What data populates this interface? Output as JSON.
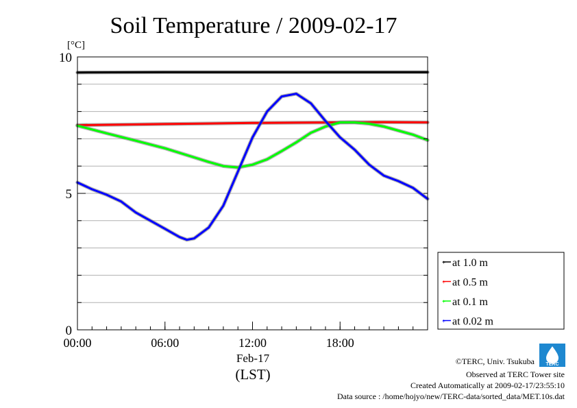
{
  "chart_data": {
    "type": "line",
    "title": "Soil Temperature / 2009-02-17",
    "yunit": "[°C]",
    "ylim": [
      0,
      10
    ],
    "yticks": [
      0,
      5,
      10
    ],
    "ygrid_step": 1,
    "xlim": [
      0,
      24
    ],
    "xticks": [
      {
        "h": 0,
        "label": "00:00"
      },
      {
        "h": 6,
        "label": "06:00"
      },
      {
        "h": 12,
        "label": "12:00"
      },
      {
        "h": 18,
        "label": "18:00"
      }
    ],
    "xsub": "Feb-17",
    "xlabel": "(LST)",
    "grid": true,
    "legend_position": "right, lower",
    "series": [
      {
        "name": "at 1.0 m",
        "color": "#000000",
        "x": [
          0,
          6,
          12,
          18,
          24
        ],
        "y": [
          9.43,
          9.44,
          9.44,
          9.44,
          9.44
        ]
      },
      {
        "name": "at 0.5 m",
        "color": "#ff0000",
        "x": [
          0,
          3,
          6,
          9,
          12,
          15,
          18,
          21,
          24
        ],
        "y": [
          7.5,
          7.52,
          7.54,
          7.56,
          7.58,
          7.59,
          7.6,
          7.61,
          7.6
        ]
      },
      {
        "name": "at 0.1 m",
        "color": "#00ff00",
        "x": [
          0,
          2,
          4,
          6,
          8,
          9,
          10,
          11,
          12,
          13,
          14,
          15,
          16,
          17,
          18,
          19,
          20,
          21,
          22,
          23,
          24
        ],
        "y": [
          7.48,
          7.2,
          6.93,
          6.65,
          6.32,
          6.15,
          6.0,
          5.95,
          6.05,
          6.25,
          6.55,
          6.87,
          7.22,
          7.45,
          7.6,
          7.6,
          7.55,
          7.45,
          7.3,
          7.15,
          6.95
        ]
      },
      {
        "name": "at 0.02 m",
        "color": "#0000ff",
        "x": [
          0,
          1,
          2,
          3,
          4,
          5,
          6,
          7,
          7.5,
          8,
          9,
          10,
          11,
          12,
          13,
          14,
          15,
          16,
          17,
          18,
          19,
          20,
          21,
          22,
          23,
          24
        ],
        "y": [
          5.4,
          5.15,
          4.95,
          4.7,
          4.3,
          4.0,
          3.7,
          3.4,
          3.3,
          3.35,
          3.75,
          4.55,
          5.8,
          7.05,
          8.0,
          8.55,
          8.65,
          8.3,
          7.65,
          7.05,
          6.6,
          6.05,
          5.65,
          5.45,
          5.2,
          4.8
        ]
      }
    ]
  },
  "credits": {
    "copyright": "©TERC, Univ. Tsukuba",
    "observed": "Observed at TERC Tower site",
    "created": "Created Automatically at 2009-02-17/23:55:10",
    "source": "Data source : /home/hojyo/new/TERC-data/sorted_data/MET.10s.dat",
    "logo_text": "TERC"
  }
}
